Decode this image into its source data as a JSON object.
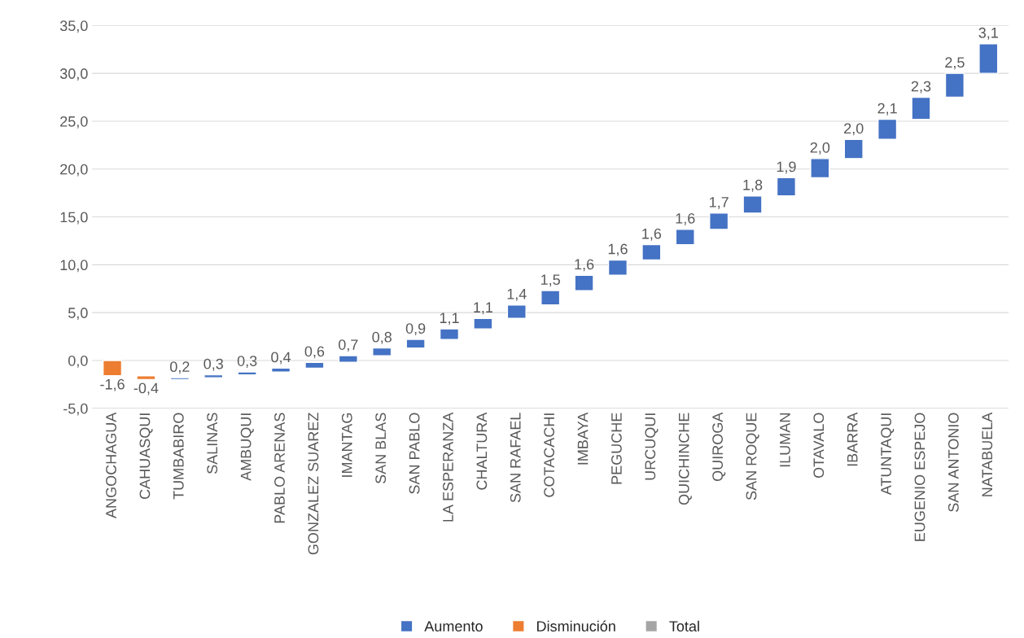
{
  "chart_data": {
    "type": "bar",
    "categories": [
      "ANGOCHAGUA",
      "CAHUASQUI",
      "TUMBABIRO",
      "SALINAS",
      "AMBUQUI",
      "PABLO ARENAS",
      "GONZALEZ SUAREZ",
      "IMANTAG",
      "SAN BLAS",
      "SAN PABLO",
      "LA ESPERANZA",
      "CHALTURA",
      "SAN RAFAEL",
      "COTACACHI",
      "IMBAYA",
      "PEGUCHE",
      "URCUQUI",
      "QUICHINCHE",
      "QUIROGA",
      "SAN ROQUE",
      "ILUMAN",
      "OTAVALO",
      "IBARRA",
      "ATUNTAQUI",
      "EUGENIO ESPEJO",
      "SAN ANTONIO",
      "NATABUELA"
    ],
    "series": [
      {
        "name": "Aumento",
        "color": "#4472c4",
        "base": [
          null,
          null,
          -2.0,
          -1.8,
          -1.5,
          -1.2,
          -0.8,
          -0.2,
          0.5,
          1.3,
          2.2,
          3.3,
          4.4,
          5.8,
          7.3,
          8.9,
          10.5,
          12.1,
          13.7,
          15.4,
          17.2,
          19.1,
          21.1,
          23.1,
          25.2,
          27.5,
          30.0
        ],
        "values": [
          null,
          null,
          0.2,
          0.3,
          0.3,
          0.4,
          0.6,
          0.7,
          0.8,
          0.9,
          1.1,
          1.1,
          1.4,
          1.5,
          1.6,
          1.6,
          1.6,
          1.6,
          1.7,
          1.8,
          1.9,
          2.0,
          2.0,
          2.1,
          2.3,
          2.5,
          3.1
        ],
        "value_labels": [
          null,
          null,
          "0,2",
          "0,3",
          "0,3",
          "0,4",
          "0,6",
          "0,7",
          "0,8",
          "0,9",
          "1,1",
          "1,1",
          "1,4",
          "1,5",
          "1,6",
          "1,6",
          "1,6",
          "1,6",
          "1,7",
          "1,8",
          "1,9",
          "2,0",
          "2,0",
          "2,1",
          "2,3",
          "2,5",
          "3,1"
        ]
      },
      {
        "name": "Disminución",
        "color": "#ed7d31",
        "base": [
          0,
          -1.6,
          null,
          null,
          null,
          null,
          null,
          null,
          null,
          null,
          null,
          null,
          null,
          null,
          null,
          null,
          null,
          null,
          null,
          null,
          null,
          null,
          null,
          null,
          null,
          null,
          null
        ],
        "values": [
          -1.6,
          -0.4,
          null,
          null,
          null,
          null,
          null,
          null,
          null,
          null,
          null,
          null,
          null,
          null,
          null,
          null,
          null,
          null,
          null,
          null,
          null,
          null,
          null,
          null,
          null,
          null,
          null
        ],
        "value_labels": [
          "-1,6",
          "-0,4",
          null,
          null,
          null,
          null,
          null,
          null,
          null,
          null,
          null,
          null,
          null,
          null,
          null,
          null,
          null,
          null,
          null,
          null,
          null,
          null,
          null,
          null,
          null,
          null,
          null
        ]
      },
      {
        "name": "Total",
        "color": "#a5a5a5",
        "values": [
          null,
          null,
          null,
          null,
          null,
          null,
          null,
          null,
          null,
          null,
          null,
          null,
          null,
          null,
          null,
          null,
          null,
          null,
          null,
          null,
          null,
          null,
          null,
          null,
          null,
          null,
          null
        ]
      }
    ],
    "ylim": [
      -5,
      35
    ],
    "yticks": [
      {
        "value": -5,
        "label": "-5,0"
      },
      {
        "value": 0,
        "label": "0,0"
      },
      {
        "value": 5,
        "label": "5,0"
      },
      {
        "value": 10,
        "label": "10,0"
      },
      {
        "value": 15,
        "label": "15,0"
      },
      {
        "value": 20,
        "label": "20,0"
      },
      {
        "value": 25,
        "label": "25,0"
      },
      {
        "value": 30,
        "label": "30,0"
      },
      {
        "value": 35,
        "label": "35,0"
      }
    ],
    "grid": "y",
    "legend": "bottom"
  }
}
